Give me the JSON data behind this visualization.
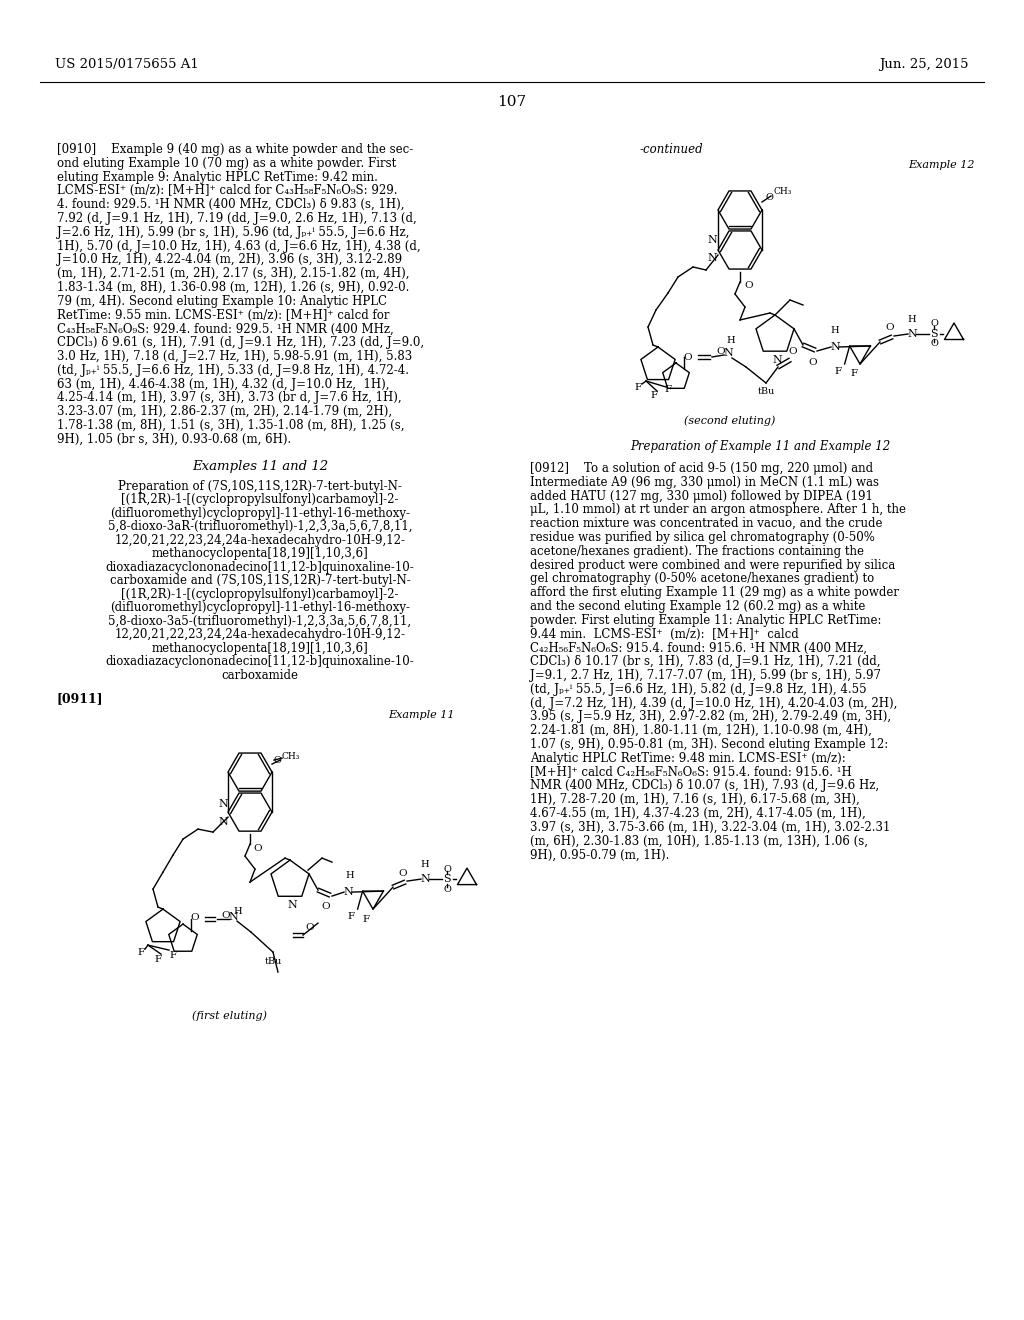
{
  "page_number": "107",
  "patent_number": "US 2015/0175655 A1",
  "patent_date": "Jun. 25, 2015",
  "background_color": "#ffffff",
  "paragraph_0910_text": "[0910]    Example 9 (40 mg) as a white powder and the sec-ond eluting Example 10 (70 mg) as a white powder. First eluting Example 9: Analytic HPLC RetTime: 9.42 min. LCMS-ESI⁺ (m/z): [M+H]⁺ calcd for C₄₃H₅₈F₅N₆O₉S: 929.4. found: 929.5. ¹H NMR (400 MHz, CDCl₃) δ 9.83 (s, 1H), 7.92 (d, J=9.1 Hz, 1H), 7.19 (dd, J=9.0, 2.6 Hz, 1H), 7.13 (d, J=2.6 Hz, 1H), 5.99 (br s, 1H), 5.96 (td, Jᴴ₊ᶠ 55.5, J=6.6 Hz, 1H), 5.70 (d, J=10.0 Hz, 1H), 4.63 (d, J=6.6 Hz, 1H), 4.38 (d, J=10.0 Hz, 1H), 4.22-4.04 (m, 2H), 3.96 (s, 3H), 3.12-2.89 (m, 1H), 2.71-2.51 (m, 2H), 2.17 (s, 3H), 2.15-1.82 (m, 4H), 1.83-1.34 (m, 8H), 1.36-0.98 (m, 12H), 1.26 (s, 9H), 0.92-0.79 (m, 4H). Second eluting Example 10: Analytic HPLC RetTime: 9.55 min. LCMS-ESI⁺ (m/z): [M+H]⁺ calcd for C₄₃H₅₈F₅N₆O₉S: 929.4. found: 929.5. ¹H NMR (400 MHz, CDCl₃) δ 9.61 (s, 1H), 7.91 (d, J=9.1 Hz, 1H), 7.23 (dd, J=9.0, 3.0 Hz, 1H), 7.18 (d, J=2.7 Hz, 1H), 5.98-5.91 (m, 1H), 5.83 (td, Jᴴ₊ᶠ 55.5, J=6.6 Hz, 1H), 5.33 (d, J=9.8 Hz, 1H), 4.72-4.63 (m, 1H), 4.46-4.38 (m, 1H), 4.32 (d, J=10.0 Hz, 1H), 4.25-4.14 (m, 1H), 3.97 (s, 3H), 3.73 (br d, J=7.6 Hz, 1H), 3.23-3.07 (m, 1H), 2.86-2.37 (m, 2H), 2.14-1.79 (m, 2H), 1.78-1.38 (m, 8H), 1.51 (s, 3H), 1.35-1.08 (m, 8H), 1.25 (s, 9H), 1.05 (br s, 3H), 0.93-0.68 (m, 6H).",
  "examples_title": "Examples 11 and 12",
  "preparation_title_lines": [
    "Preparation of (7S,10S,11S,12R)-7-tert-butyl-N-",
    "[(1R,2R)-1-[(cyclopropylsulfonyl)carbamoyl]-2-",
    "(difluoromethyl)cyclopropyl]-11-ethyl-16-methoxy-",
    "5,8-dioxo-3aR-(trifluoromethyl)-1,2,3,3a,5,6,7,8,11,",
    "12,20,21,22,23,24,24a-hexadecahydro-10H-9,12-",
    "methanocyclopenta[18,19][1,10,3,6]",
    "dioxadiazacyclononadecino[11,12-b]quinoxaline-10-",
    "carboxamide and (7S,10S,11S,12R)-7-tert-butyl-N-",
    "[(1R,2R)-1-[(cyclopropylsulfonyl)carbamoyl]-2-",
    "(difluoromethyl)cyclopropyl]-11-ethyl-16-methoxy-",
    "5,8-dioxo-3a5-(trifluoromethyl)-1,2,3,3a,5,6,7,8,11,",
    "12,20,21,22,23,24,24a-hexadecahydro-10H-9,12-",
    "methanocyclopenta[18,19][1,10,3,6]",
    "dioxadiazacyclononadecino[11,12-b]quinoxaline-10-",
    "carboxamide"
  ],
  "paragraph_0911_label": "[0911]",
  "paragraph_0912_text": "[0912]    To a solution of acid 9-5 (150 mg, 220 μmol) and Intermediate A9 (96 mg, 330 μmol) in MeCN (1.1 mL) was added HATU (127 mg, 330 μmol) followed by DIPEA (191 μL, 1.10 mmol) at rt under an argon atmosphere. After 1 h, the reaction mixture was concentrated in vacuo, and the crude residue was purified by silica gel chromatography (0-50% acetone/hexanes gradient). The fractions containing the desired product were combined and were repurified by silica gel chromatography (0-50% acetone/hexanes gradient) to afford the first eluting Example 11 (29 mg) as a white powder and the second eluting Example 12 (60.2 mg) as a white powder. First eluting Example 11: Analytic HPLC RetTime: 9.44 min. LCMS-ESI⁺ (m/z): [M+H]⁺ calcd C₄₂H₅₆F₅N₆O₆S: 915.4. found: 915.6. ¹H NMR (400 MHz, CDCl₃) δ 10.17 (br s, 1H), 7.83 (d, J=9.1 Hz, 1H), 7.21 (dd, J=9.1, 2.7 Hz, 1H), 7.17-7.07 (m, 1H), 5.99 (br s, 1H), 5.97 (td, Jᴴ₊ᶠ 55.5, J=6.6 Hz, 1H), 5.82 (d, J=9.8 Hz, 1H), 4.55 (d, J=7.2 Hz, 1H), 4.39 (d, J=10.0 Hz, 1H), 4.20-4.03 (m, 2H), 3.95 (s, J=5.9 Hz, 3H), 2.97-2.82 (m, 2H), 2.79-2.49 (m, 3H), 2.24-1.81 (m, 8H), 1.80-1.11 (m, 12H), 1.10-0.98 (m, 4H), 1.07 (s, 9H), 0.95-0.81 (m, 3H). Second eluting Example 12: Analytic HPLC RetTime: 9.48 min. LCMS-ESI⁺ (m/z): [M+H]⁺ calcd C₄₂H₅₆F₅N₆O₆S: 915.4. found: 915.6. ¹H NMR (400 MHz, CDCl₃) δ 10.07 (s, 1H), 7.93 (d, J=9.6 Hz, 1H), 7.28-7.20 (m, 1H), 7.16 (s, 1H), 6.17-5.68 (m, 3H), 4.67-4.55 (m, 1H), 4.37-4.23 (m, 2H), 4.17-4.05 (m, 1H), 3.97 (s, 3H), 3.75-3.66 (m, 1H), 3.22-3.04 (m, 1H), 3.02-2.31 (m, 6H), 2.30-1.83 (m, 10H), 1.85-1.13 (m, 13H), 1.06 (s, 9H), 0.95-0.79 (m, 1H).",
  "continued_label": "-continued",
  "example12_label": "Example 12",
  "example11_label": "Example 11",
  "first_eluting_label": "(first eluting)",
  "second_eluting_label": "(second eluting)",
  "prep_example_label": "Preparation of Example 11 and Example 12"
}
